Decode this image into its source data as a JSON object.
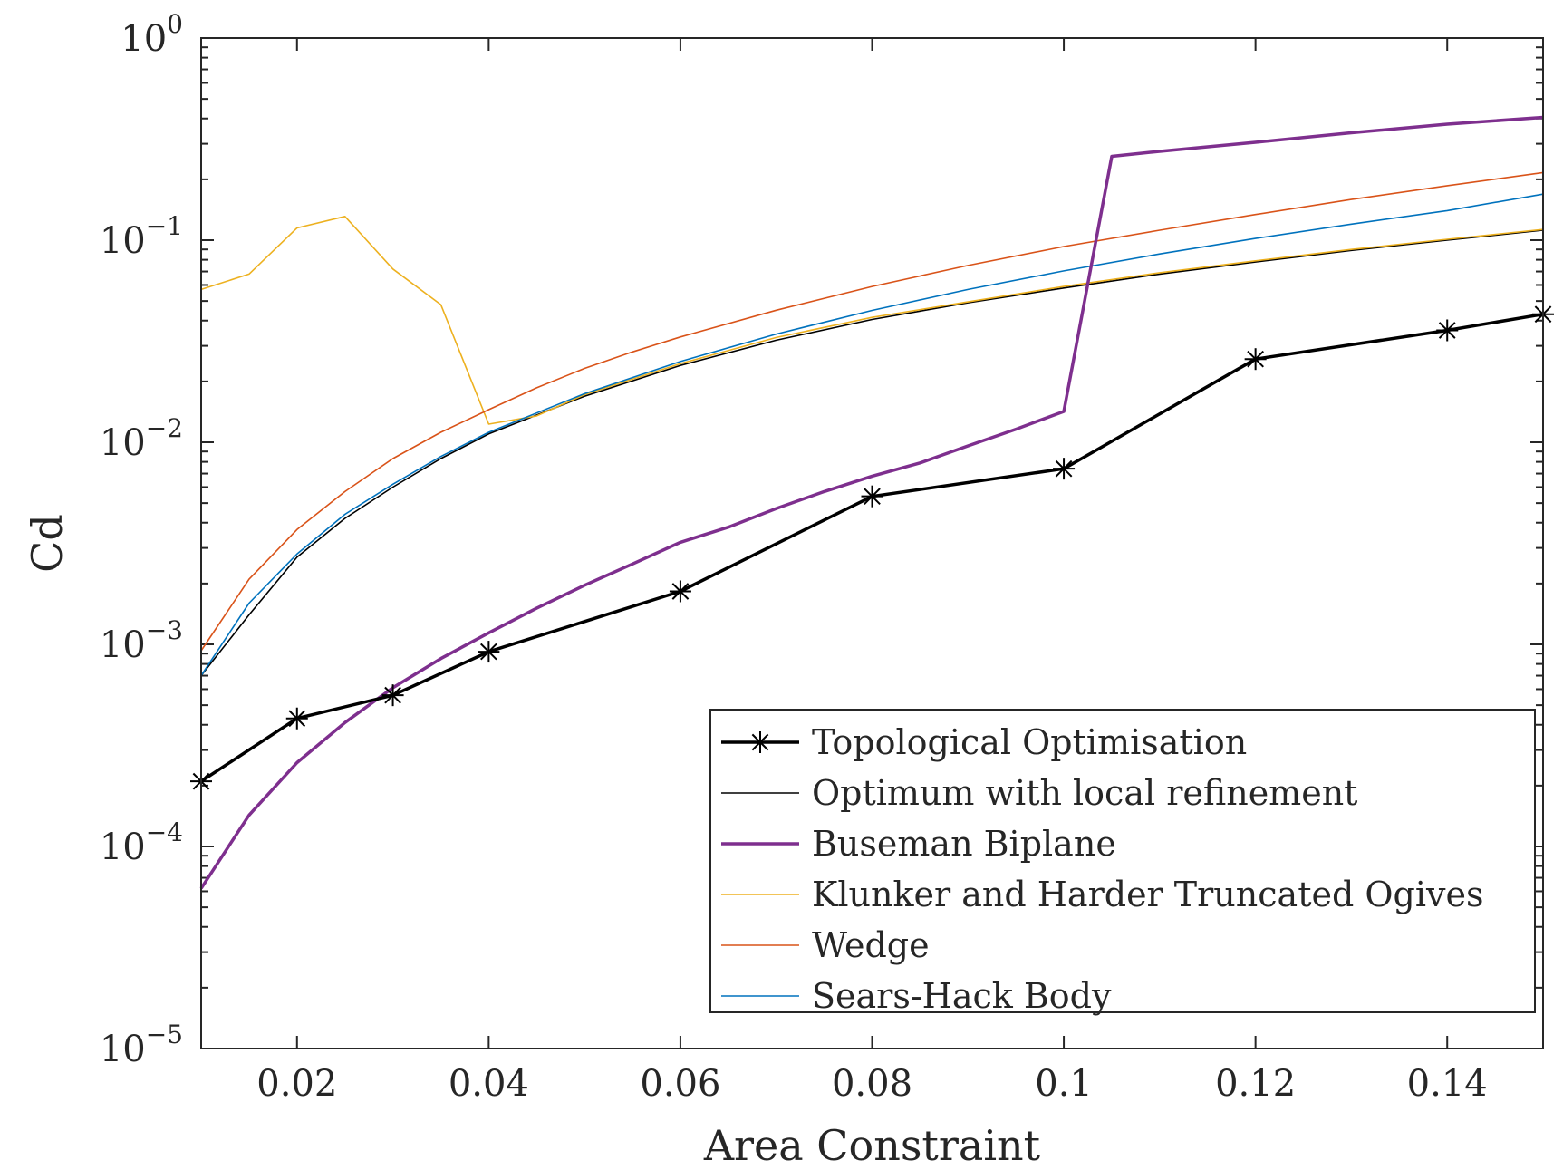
{
  "chart_data": {
    "type": "line",
    "xlabel": "Area Constraint",
    "ylabel": "Cd",
    "xlim": [
      0.01,
      0.15
    ],
    "ylim": [
      1e-05,
      1
    ],
    "yscale": "log",
    "grid": false,
    "legend_position": "bottom-right",
    "x_ticks": [
      {
        "value": 0.02,
        "label": "0.02"
      },
      {
        "value": 0.04,
        "label": "0.04"
      },
      {
        "value": 0.06,
        "label": "0.06"
      },
      {
        "value": 0.08,
        "label": "0.08"
      },
      {
        "value": 0.1,
        "label": "0.1"
      },
      {
        "value": 0.12,
        "label": "0.12"
      },
      {
        "value": 0.14,
        "label": "0.14"
      }
    ],
    "y_ticks": [
      {
        "value": 1,
        "base": "10",
        "exp": "0"
      },
      {
        "value": 0.1,
        "base": "10",
        "exp": "−1"
      },
      {
        "value": 0.01,
        "base": "10",
        "exp": "−2"
      },
      {
        "value": 0.001,
        "base": "10",
        "exp": "−3"
      },
      {
        "value": 0.0001,
        "base": "10",
        "exp": "−4"
      },
      {
        "value": 1e-05,
        "base": "10",
        "exp": "−5"
      }
    ],
    "series": [
      {
        "name": "Optimum with local refinement",
        "color": "#000000",
        "width": 1.6,
        "marker": "none",
        "x": [
          0.01,
          0.015,
          0.02,
          0.025,
          0.03,
          0.035,
          0.04,
          0.05,
          0.06,
          0.07,
          0.08,
          0.09,
          0.1,
          0.11,
          0.12,
          0.13,
          0.14,
          0.15
        ],
        "y": [
          0.0007,
          0.0014,
          0.0027,
          0.0042,
          0.006,
          0.0083,
          0.011,
          0.0169,
          0.024,
          0.032,
          0.0405,
          0.049,
          0.058,
          0.068,
          0.078,
          0.089,
          0.1,
          0.112
        ]
      },
      {
        "name": "Klunker and Harder Truncated Ogives",
        "color": "#EDB120",
        "width": 1.6,
        "marker": "none",
        "x": [
          0.01,
          0.015,
          0.02,
          0.025,
          0.03,
          0.035,
          0.04,
          0.045,
          0.05,
          0.06,
          0.07,
          0.08,
          0.09,
          0.1,
          0.11,
          0.12,
          0.13,
          0.14,
          0.15
        ],
        "y": [
          0.057,
          0.068,
          0.115,
          0.131,
          0.072,
          0.048,
          0.0123,
          0.0135,
          0.0172,
          0.0245,
          0.033,
          0.0415,
          0.0495,
          0.059,
          0.069,
          0.079,
          0.09,
          0.101,
          0.113
        ]
      },
      {
        "name": "Wedge",
        "color": "#D95319",
        "width": 1.6,
        "marker": "none",
        "x": [
          0.01,
          0.015,
          0.02,
          0.025,
          0.03,
          0.035,
          0.04,
          0.045,
          0.05,
          0.055,
          0.06,
          0.07,
          0.08,
          0.09,
          0.1,
          0.11,
          0.12,
          0.13,
          0.14,
          0.15
        ],
        "y": [
          0.00093,
          0.0021,
          0.0037,
          0.0057,
          0.0083,
          0.0112,
          0.0145,
          0.0186,
          0.0232,
          0.028,
          0.0332,
          0.045,
          0.059,
          0.075,
          0.093,
          0.112,
          0.134,
          0.159,
          0.186,
          0.216
        ]
      },
      {
        "name": "Sears-Hack Body",
        "color": "#0072BD",
        "width": 1.6,
        "marker": "none",
        "x": [
          0.01,
          0.015,
          0.02,
          0.025,
          0.03,
          0.035,
          0.04,
          0.05,
          0.06,
          0.07,
          0.08,
          0.09,
          0.1,
          0.11,
          0.12,
          0.13,
          0.14,
          0.15
        ],
        "y": [
          0.0007,
          0.0016,
          0.0028,
          0.0044,
          0.0062,
          0.0085,
          0.0112,
          0.0174,
          0.0251,
          0.0343,
          0.0449,
          0.057,
          0.0705,
          0.0855,
          0.102,
          0.12,
          0.14,
          0.169
        ]
      },
      {
        "name": "Buseman Biplane",
        "color": "#7E2F8E",
        "width": 3.5,
        "marker": "none",
        "x": [
          0.01,
          0.015,
          0.02,
          0.025,
          0.03,
          0.035,
          0.04,
          0.045,
          0.05,
          0.055,
          0.06,
          0.065,
          0.07,
          0.075,
          0.08,
          0.085,
          0.09,
          0.095,
          0.1,
          0.105,
          0.11,
          0.12,
          0.13,
          0.14,
          0.15
        ],
        "y": [
          6.2e-05,
          0.000143,
          0.00026,
          0.00041,
          0.00061,
          0.00085,
          0.00114,
          0.00151,
          0.00196,
          0.0025,
          0.0032,
          0.0038,
          0.0047,
          0.0057,
          0.0068,
          0.0079,
          0.0096,
          0.0116,
          0.0142,
          0.26,
          0.275,
          0.305,
          0.34,
          0.375,
          0.405
        ]
      },
      {
        "name": "Topological Optimisation",
        "color": "#000000",
        "width": 3.5,
        "marker": "asterisk",
        "x": [
          0.01,
          0.02,
          0.03,
          0.04,
          0.06,
          0.08,
          0.1,
          0.12,
          0.14,
          0.15
        ],
        "y": [
          0.00021,
          0.00043,
          0.00056,
          0.00092,
          0.00183,
          0.0054,
          0.0074,
          0.0258,
          0.0358,
          0.043
        ]
      }
    ],
    "legend_order": [
      "Topological Optimisation",
      "Optimum with local refinement",
      "Buseman Biplane",
      "Klunker and Harder Truncated Ogives",
      "Wedge",
      "Sears-Hack Body"
    ]
  }
}
